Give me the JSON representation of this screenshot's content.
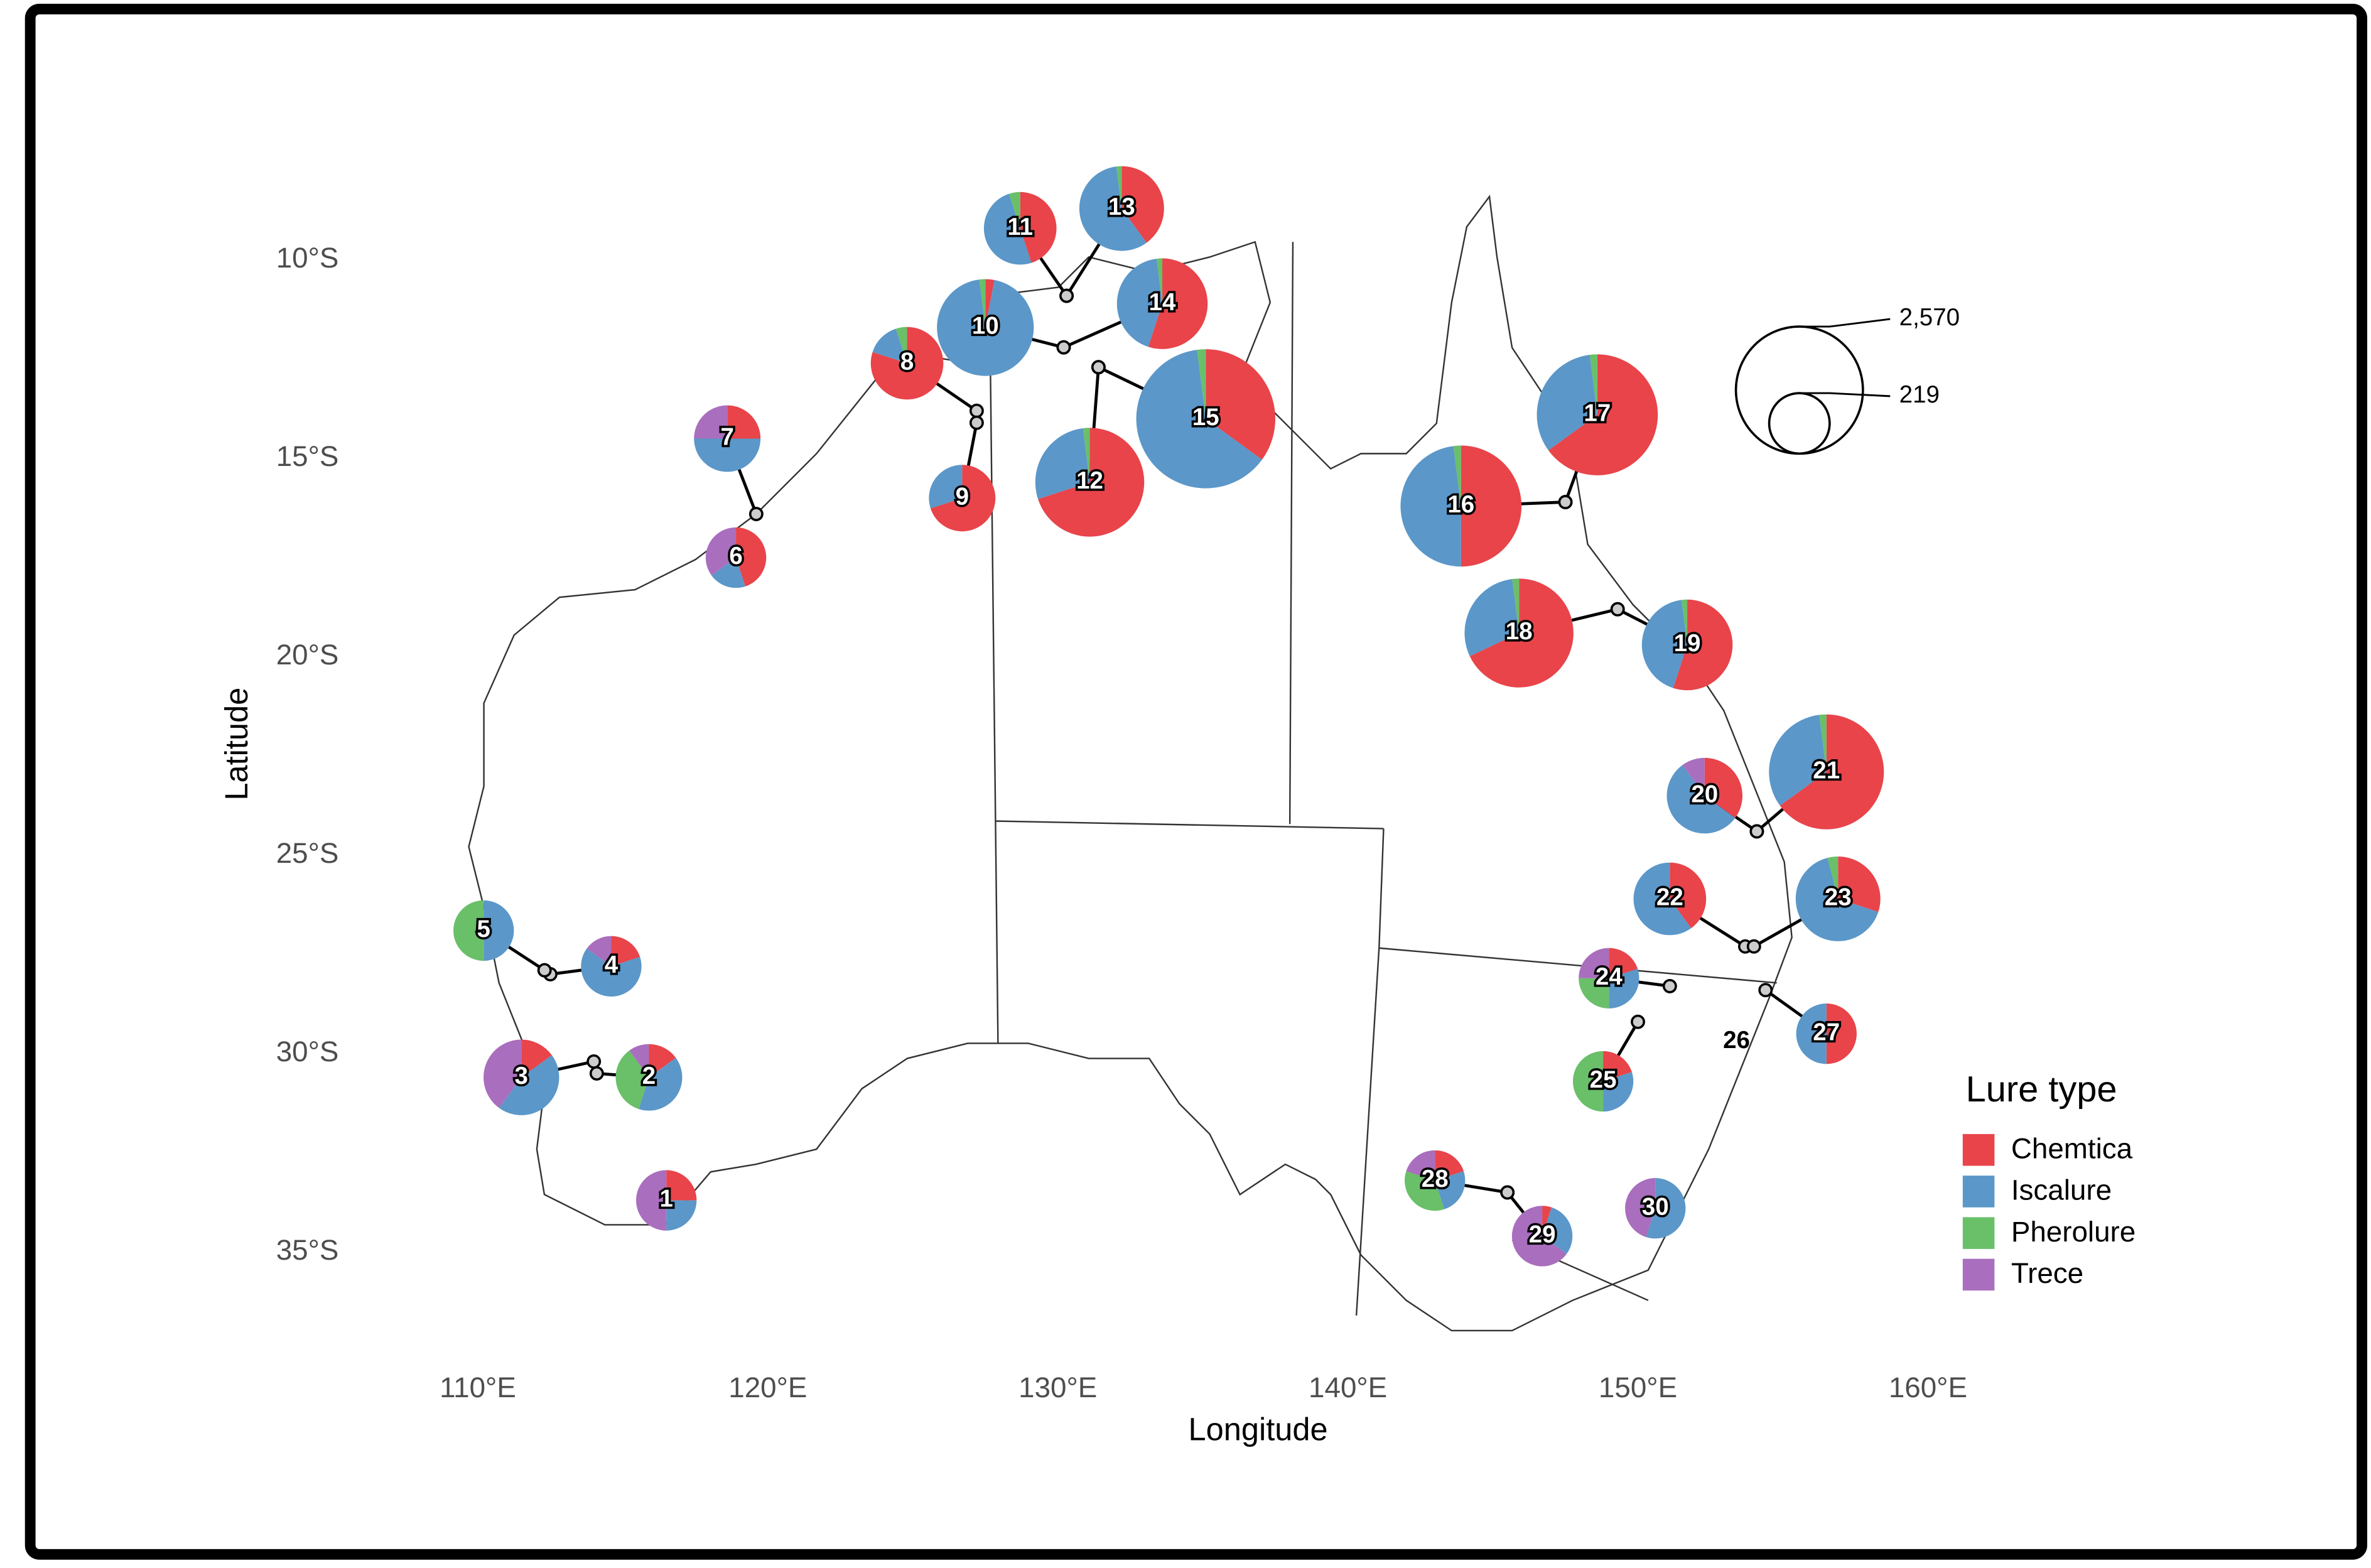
{
  "chart_data": {
    "type": "map-pie",
    "x_label": "Longitude",
    "y_label": "Latitude",
    "xlim": [
      105,
      165
    ],
    "ylim": [
      -38,
      -5
    ],
    "xticks": [
      {
        "value": 110,
        "label": "110°E"
      },
      {
        "value": 120,
        "label": "120°E"
      },
      {
        "value": 130,
        "label": "130°E"
      },
      {
        "value": 140,
        "label": "140°E"
      },
      {
        "value": 150,
        "label": "150°E"
      },
      {
        "value": 160,
        "label": "160°E"
      }
    ],
    "yticks": [
      {
        "value": -10,
        "label": "10°S"
      },
      {
        "value": -15,
        "label": "15°S"
      },
      {
        "value": -20,
        "label": "20°S"
      },
      {
        "value": -25,
        "label": "25°S"
      },
      {
        "value": -30,
        "label": "30°S"
      },
      {
        "value": -35,
        "label": "35°S"
      }
    ],
    "legend_title": "Lure type",
    "series": [
      {
        "name": "Chemtica",
        "color": "#e8444a"
      },
      {
        "name": "Iscalure",
        "color": "#5b97c9"
      },
      {
        "name": "Pherolure",
        "color": "#6abf69"
      },
      {
        "name": "Trece",
        "color": "#a96ebd"
      }
    ],
    "size_legend": [
      {
        "value": 2570,
        "label": "2,570"
      },
      219
    ],
    "sites": [
      {
        "label": "1",
        "lon": 116.5,
        "lat": -33.7,
        "total": 219,
        "values": [
          25,
          25,
          0,
          50
        ]
      },
      {
        "label": "2",
        "lon": 115.9,
        "lat": -30.6,
        "site_lon": 114.1,
        "site_lat": -30.5,
        "total": 326,
        "values": [
          15,
          40,
          35,
          10
        ]
      },
      {
        "label": "3",
        "lon": 111.5,
        "lat": -30.6,
        "site_lon": 114.0,
        "site_lat": -30.2,
        "total": 527,
        "values": [
          15,
          45,
          0,
          40
        ]
      },
      {
        "label": "4",
        "lon": 114.6,
        "lat": -27.8,
        "site_lon": 112.5,
        "site_lat": -28.0,
        "total": 219,
        "values": [
          20,
          65,
          0,
          15
        ]
      },
      {
        "label": "5",
        "lon": 110.2,
        "lat": -26.9,
        "site_lon": 112.3,
        "site_lat": -27.9,
        "total": 219,
        "values": [
          0,
          50,
          50,
          0
        ]
      },
      {
        "label": "6",
        "lon": 118.9,
        "lat": -17.5,
        "total": 219,
        "values": [
          45,
          20,
          0,
          35
        ]
      },
      {
        "label": "7",
        "lon": 118.6,
        "lat": -14.5,
        "site_lon": 119.6,
        "site_lat": -16.4,
        "total": 326,
        "values": [
          25,
          50,
          0,
          25
        ]
      },
      {
        "label": "8",
        "lon": 124.8,
        "lat": -12.6,
        "site_lon": 127.2,
        "site_lat": -13.8,
        "total": 455,
        "values": [
          80,
          15,
          5,
          0
        ]
      },
      {
        "label": "9",
        "lon": 126.7,
        "lat": -16.0,
        "site_lon": 127.2,
        "site_lat": -14.1,
        "total": 326,
        "values": [
          70,
          30,
          0,
          0
        ]
      },
      {
        "label": "10",
        "lon": 127.5,
        "lat": -11.7,
        "site_lon": 130.2,
        "site_lat": -12.2,
        "total": 1182,
        "values": [
          3,
          95,
          2,
          0
        ]
      },
      {
        "label": "11",
        "lon": 128.7,
        "lat": -9.2,
        "site_lon": 130.3,
        "site_lat": -10.9,
        "total": 455,
        "values": [
          45,
          50,
          5,
          0
        ]
      },
      {
        "label": "12",
        "lon": 131.1,
        "lat": -15.6,
        "site_lon": 131.4,
        "site_lat": -12.7,
        "total": 1673,
        "values": [
          70,
          28,
          2,
          0
        ]
      },
      {
        "label": "13",
        "lon": 132.2,
        "lat": -8.7,
        "site_lon": 130.3,
        "site_lat": -10.9,
        "total": 776,
        "values": [
          40,
          58,
          2,
          0
        ]
      },
      {
        "label": "14",
        "lon": 133.6,
        "lat": -11.1,
        "site_lon": 130.2,
        "site_lat": -12.2,
        "total": 968,
        "values": [
          55,
          43,
          2,
          0
        ]
      },
      {
        "label": "15",
        "lon": 135.1,
        "lat": -14.0,
        "site_lon": 131.4,
        "site_lat": -12.7,
        "total": 3270,
        "values": [
          35,
          63,
          2,
          0
        ]
      },
      {
        "label": "16",
        "lon": 143.9,
        "lat": -16.2,
        "site_lon": 147.5,
        "site_lat": -16.1,
        "total": 2250,
        "values": [
          50,
          48,
          2,
          0
        ]
      },
      {
        "label": "17",
        "lon": 148.6,
        "lat": -13.9,
        "site_lon": 147.5,
        "site_lat": -16.1,
        "total": 2250,
        "values": [
          65,
          33,
          2,
          0
        ]
      },
      {
        "label": "18",
        "lon": 145.9,
        "lat": -19.4,
        "site_lon": 149.3,
        "site_lat": -18.8,
        "total": 1673,
        "values": [
          68,
          30,
          2,
          0
        ]
      },
      {
        "label": "19",
        "lon": 151.7,
        "lat": -19.7,
        "site_lon": 149.3,
        "site_lat": -18.8,
        "total": 968,
        "values": [
          55,
          43,
          2,
          0
        ]
      },
      {
        "label": "20",
        "lon": 152.3,
        "lat": -23.5,
        "site_lon": 154.1,
        "site_lat": -24.4,
        "total": 527,
        "values": [
          35,
          55,
          0,
          10
        ]
      },
      {
        "label": "21",
        "lon": 156.5,
        "lat": -22.9,
        "site_lon": 154.1,
        "site_lat": -24.4,
        "total": 1950,
        "values": [
          65,
          33,
          2,
          0
        ]
      },
      {
        "label": "22",
        "lon": 151.1,
        "lat": -26.1,
        "site_lon": 153.7,
        "site_lat": -27.3,
        "total": 455,
        "values": [
          40,
          60,
          0,
          0
        ]
      },
      {
        "label": "23",
        "lon": 156.9,
        "lat": -26.1,
        "site_lon": 154.0,
        "site_lat": -27.3,
        "total": 776,
        "values": [
          30,
          66,
          4,
          0
        ]
      },
      {
        "label": "24",
        "lon": 149.0,
        "lat": -28.1,
        "site_lon": 151.1,
        "site_lat": -28.3,
        "total": 219,
        "values": [
          20,
          30,
          25,
          25
        ]
      },
      {
        "label": "25",
        "lon": 148.8,
        "lat": -30.7,
        "site_lon": 150.0,
        "site_lat": -29.2,
        "total": 219,
        "values": [
          20,
          30,
          50,
          0
        ]
      },
      {
        "label": "26",
        "lon": 153.4,
        "lat": -29.7
      },
      {
        "label": "27",
        "lon": 156.5,
        "lat": -29.5,
        "site_lon": 154.4,
        "site_lat": -28.4,
        "total": 219,
        "values": [
          50,
          50,
          0,
          0
        ]
      },
      {
        "label": "28",
        "lon": 143.0,
        "lat": -33.2,
        "site_lon": 145.5,
        "site_lat": -33.5,
        "total": 219,
        "values": [
          20,
          25,
          35,
          20
        ]
      },
      {
        "label": "29",
        "lon": 146.7,
        "lat": -34.6,
        "site_lon": 145.5,
        "site_lat": -33.5,
        "total": 219,
        "values": [
          5,
          30,
          0,
          65
        ]
      },
      {
        "label": "30",
        "lon": 150.6,
        "lat": -33.9,
        "total": 219,
        "values": [
          0,
          55,
          0,
          45
        ]
      }
    ]
  }
}
